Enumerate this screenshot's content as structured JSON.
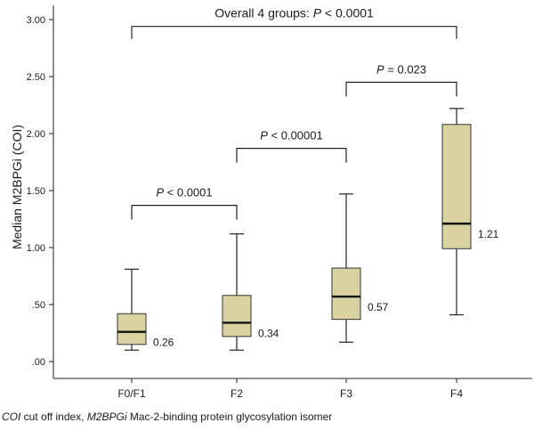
{
  "chart_data": {
    "type": "boxplot",
    "categories": [
      "F0/F1",
      "F2",
      "F3",
      "F4"
    ],
    "ylabel": "Median M2BPGi (COI)",
    "ylim": [
      0,
      3.0
    ],
    "yticks": [
      0,
      0.5,
      1.0,
      1.5,
      2.0,
      2.5,
      3.0
    ],
    "ytick_labels": [
      ".00",
      ".50",
      "1.00",
      "1.50",
      "2.00",
      "2.50",
      "3.00"
    ],
    "box_color": "#d8d3a0",
    "boxes": [
      {
        "category": "F0/F1",
        "min": 0.1,
        "q1": 0.15,
        "median": 0.26,
        "q3": 0.42,
        "max": 0.81,
        "median_label": "0.26"
      },
      {
        "category": "F2",
        "min": 0.1,
        "q1": 0.22,
        "median": 0.34,
        "q3": 0.58,
        "max": 1.12,
        "median_label": "0.34"
      },
      {
        "category": "F3",
        "min": 0.17,
        "q1": 0.37,
        "median": 0.57,
        "q3": 0.82,
        "max": 1.47,
        "median_label": "0.57"
      },
      {
        "category": "F4",
        "min": 0.41,
        "q1": 0.99,
        "median": 1.21,
        "q3": 2.08,
        "max": 2.22,
        "median_label": "1.21"
      }
    ],
    "comparisons": [
      {
        "from": "F0/F1",
        "to": "F2",
        "y": 1.37,
        "p_prefix": "P",
        "p_rest": " < 0.0001"
      },
      {
        "from": "F2",
        "to": "F3",
        "y": 1.87,
        "p_prefix": "P",
        "p_rest": " < 0.00001"
      },
      {
        "from": "F3",
        "to": "F4",
        "y": 2.45,
        "p_prefix": "P",
        "p_rest": " = 0.023"
      },
      {
        "from": "F0/F1",
        "to": "F4",
        "y": 2.94,
        "label_pre": "Overall 4 groups: ",
        "p_prefix": "P",
        "p_rest": " < 0.0001"
      }
    ]
  },
  "footnote": {
    "coi_abbr": "COI",
    "coi_text": " cut off index, ",
    "m2_abbr": "M2BPGi",
    "m2_text": " Mac-2-binding protein glycosylation isomer"
  }
}
